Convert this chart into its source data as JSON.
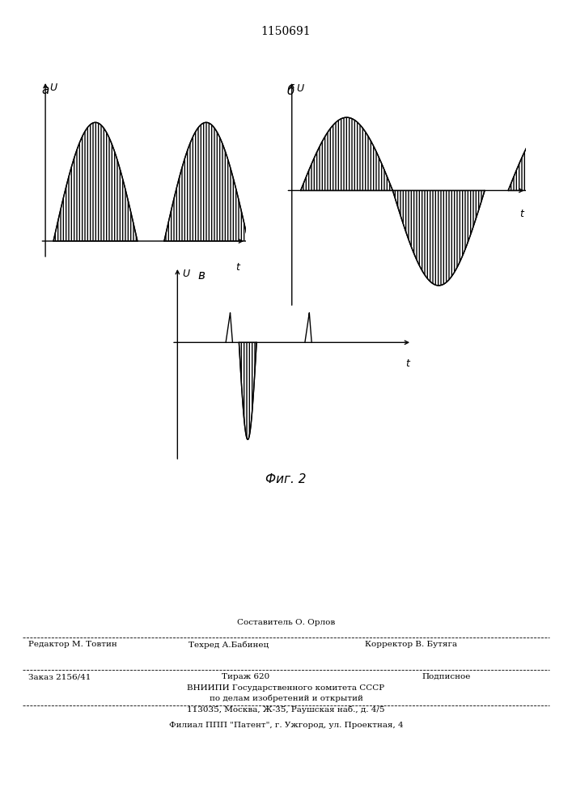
{
  "patent_number": "1150691",
  "background_color": "#ffffff",
  "line_color": "#000000",
  "fig_caption": "Фиг. 2",
  "subplot_labels": [
    "а",
    "б",
    "в"
  ],
  "footer_line1": "Составитель О. Орлов",
  "footer_line2a": "Редактор М. Товтин",
  "footer_line2b": "Техред А.Бабинец",
  "footer_line2c": "Корректор В. Бутяга",
  "footer_line3a": "Заказ 2156/41",
  "footer_line3b": "Тираж 620",
  "footer_line3c": "Подписное",
  "footer_line4": "ВНИИПИ Государственного комитета СССР",
  "footer_line5": "по делам изобретений и открытий",
  "footer_line6": "113035, Москва, Ж-35, Раушская наб., д. 4/5",
  "footer_line7": "Филиал ППП \"Патент\", г. Ужгород, ул. Проектная, 4"
}
